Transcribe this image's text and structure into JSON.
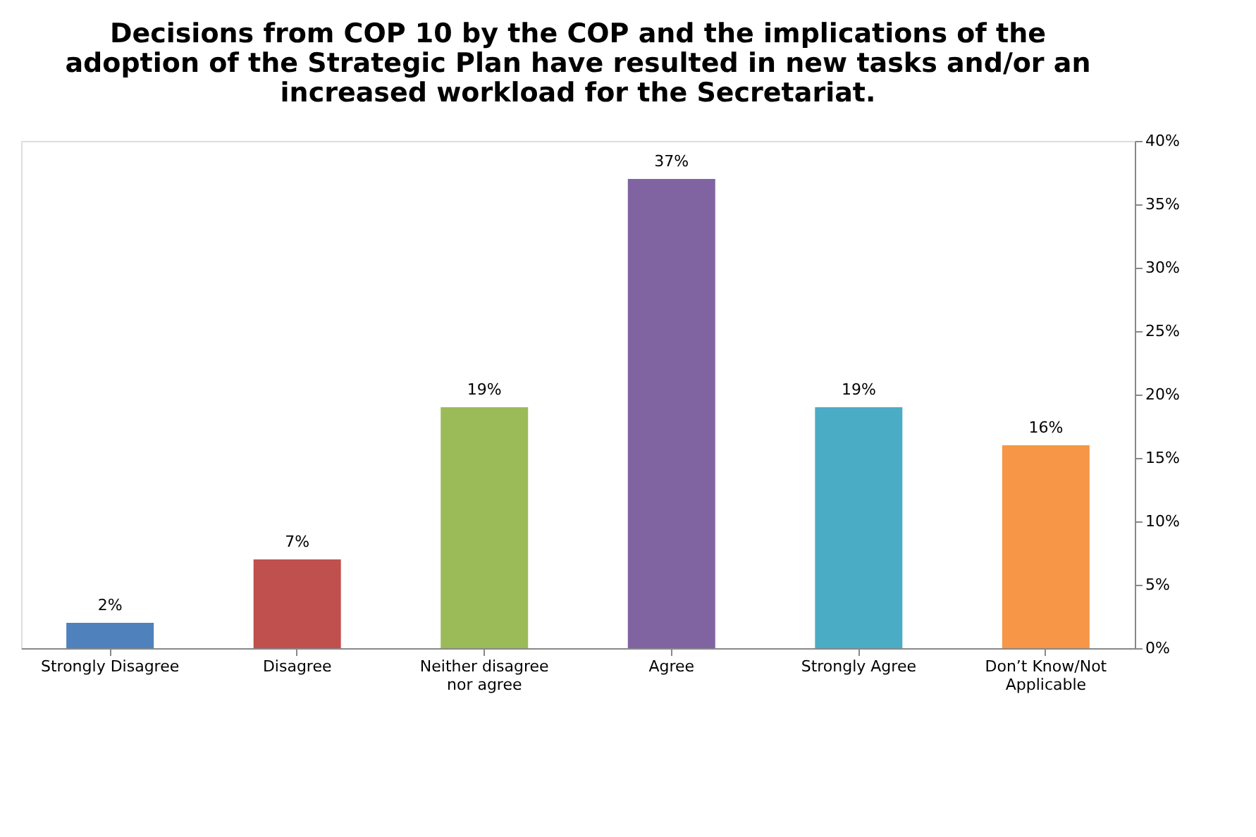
{
  "chart_data": {
    "type": "bar",
    "title": "Decisions from COP 10 by the COP and the implications of the adoption of the Strategic Plan have resulted in new tasks and/or an increased workload for the Secretariat.",
    "categories": [
      "Strongly Disagree",
      "Disagree",
      "Neither disagree nor agree",
      "Agree",
      "Strongly Agree",
      "Don’t Know/Not Applicable"
    ],
    "values": [
      2,
      7,
      19,
      37,
      19,
      16
    ],
    "value_labels": [
      "2%",
      "7%",
      "19%",
      "37%",
      "19%",
      "16%"
    ],
    "colors": [
      "#4f81bd",
      "#c0504d",
      "#9bbb59",
      "#8064a2",
      "#4bacc6",
      "#f79646"
    ],
    "ylim": [
      0,
      40
    ],
    "yticks": [
      {
        "value": 0,
        "label": "0%"
      },
      {
        "value": 5,
        "label": "5%"
      },
      {
        "value": 10,
        "label": "10%"
      },
      {
        "value": 15,
        "label": "15%"
      },
      {
        "value": 20,
        "label": "20%"
      },
      {
        "value": 25,
        "label": "25%"
      },
      {
        "value": 30,
        "label": "30%"
      },
      {
        "value": 35,
        "label": "35%"
      },
      {
        "value": 40,
        "label": "40%"
      }
    ],
    "grid": false,
    "legend": false
  }
}
